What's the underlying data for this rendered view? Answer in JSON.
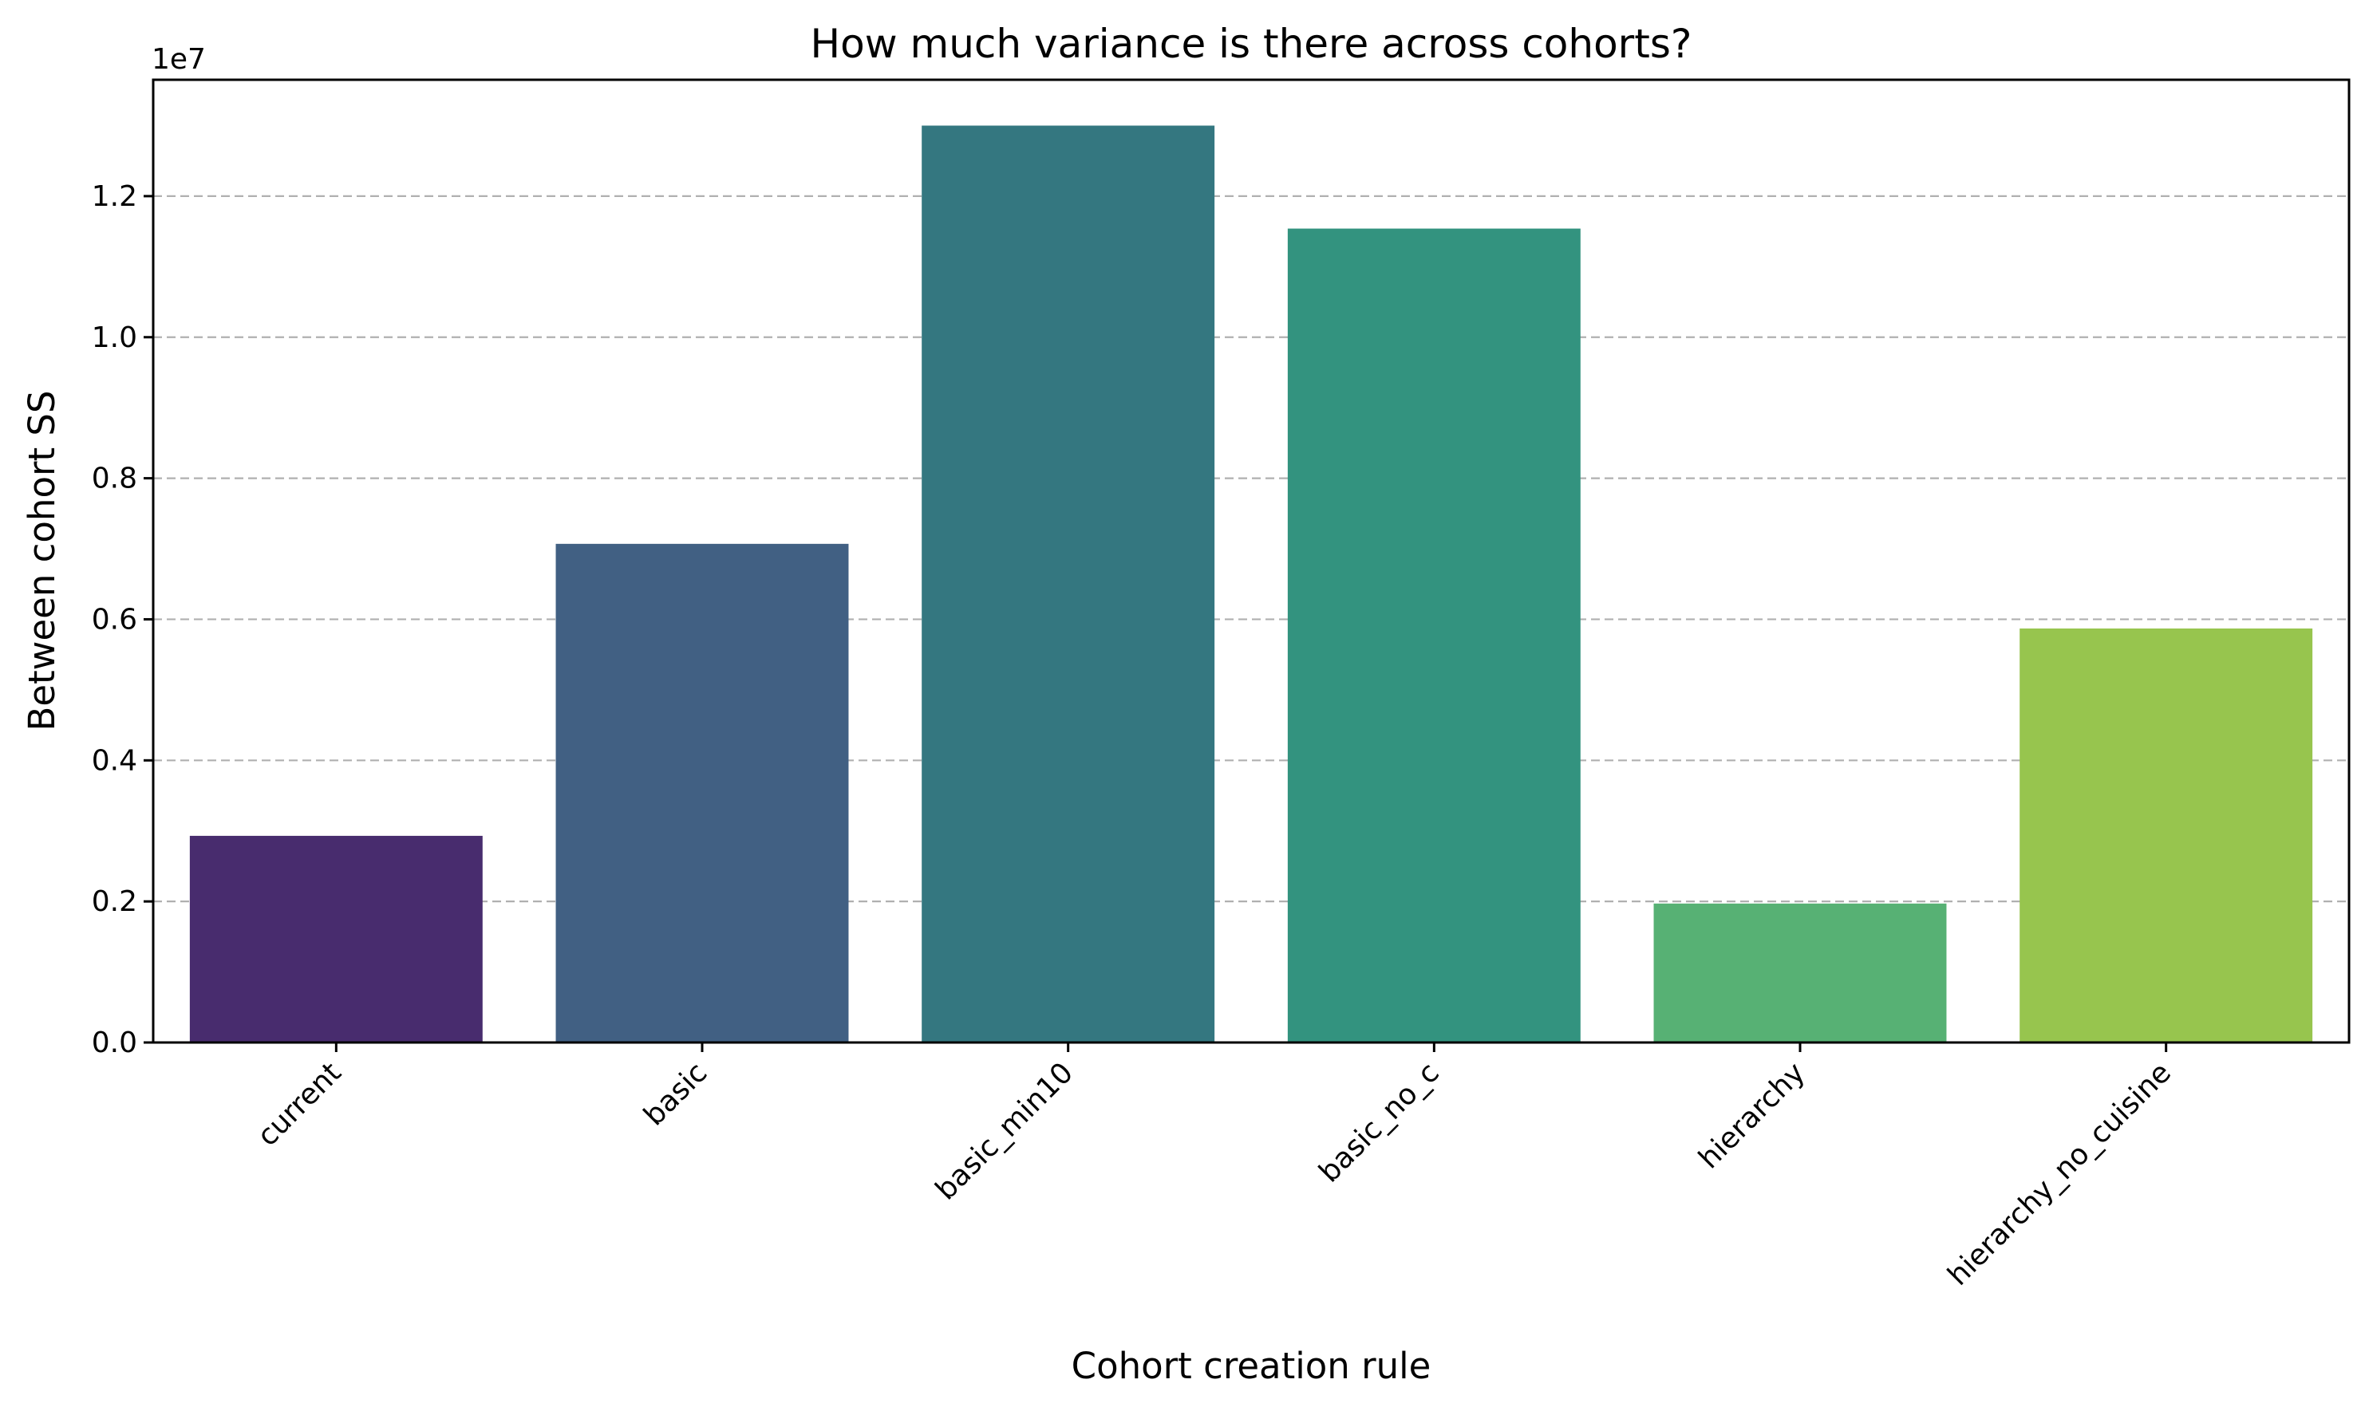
{
  "chart_data": {
    "type": "bar",
    "title": "How much variance is there across cohorts?",
    "xlabel": "Cohort creation rule",
    "ylabel": "Between cohort SS",
    "y_offset_label": "1e7",
    "y_scale_factor": 10000000,
    "categories": [
      "current",
      "basic",
      "basic_min10",
      "basic_no_c",
      "hierarchy",
      "hierarchy_no_cuisine"
    ],
    "values": [
      2930000,
      7070000,
      13000000,
      11540000,
      1970000,
      5870000
    ],
    "colors": [
      "#482c6e",
      "#416083",
      "#347780",
      "#33937f",
      "#57b174",
      "#97c54e"
    ],
    "ylim": [
      0,
      13650000
    ],
    "yticks": [
      0,
      2000000,
      4000000,
      6000000,
      8000000,
      10000000,
      12000000
    ],
    "ytick_labels": [
      "0.0",
      "0.2",
      "0.4",
      "0.6",
      "0.8",
      "1.0",
      "1.2"
    ],
    "grid": "y-dashed",
    "legend": "none"
  }
}
